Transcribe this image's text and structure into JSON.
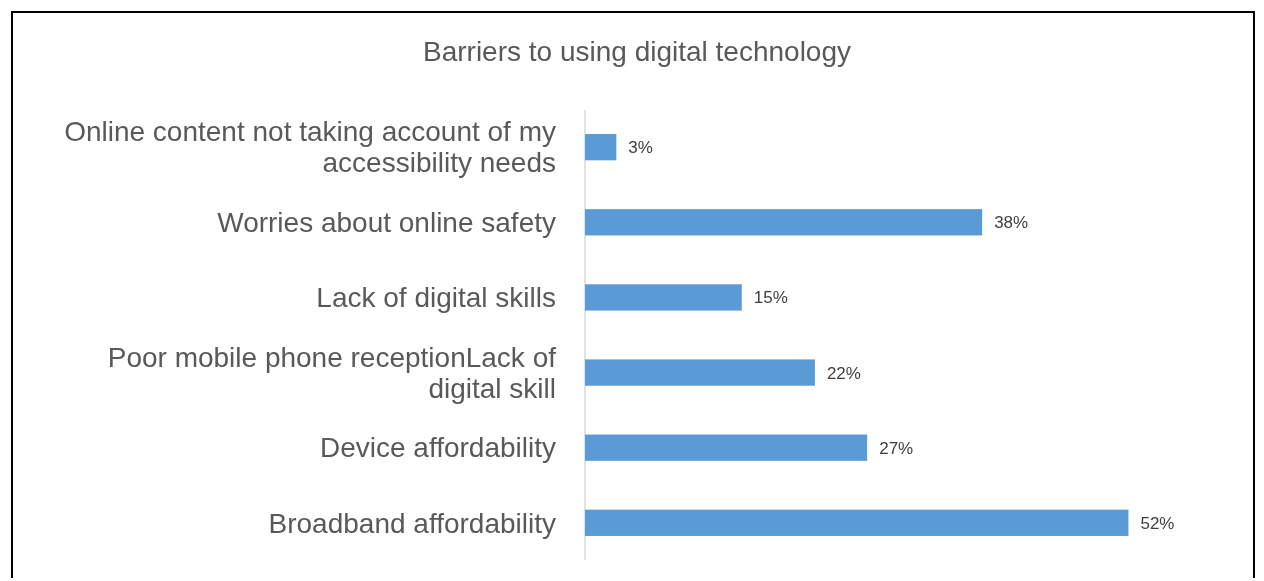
{
  "chart_data": {
    "type": "bar",
    "orientation": "horizontal",
    "title": "Barriers to using digital technology",
    "categories": [
      "Online content not taking account of my accessibility needs",
      "Worries about online safety",
      "Lack of digital skills",
      "Poor mobile phone receptionLack of digital skill",
      "Device affordability",
      "Broadband affordability"
    ],
    "values": [
      3,
      38,
      15,
      22,
      27,
      52
    ],
    "value_labels": [
      "3%",
      "38%",
      "15%",
      "22%",
      "27%",
      "52%"
    ],
    "color": "#5b9bd5"
  }
}
